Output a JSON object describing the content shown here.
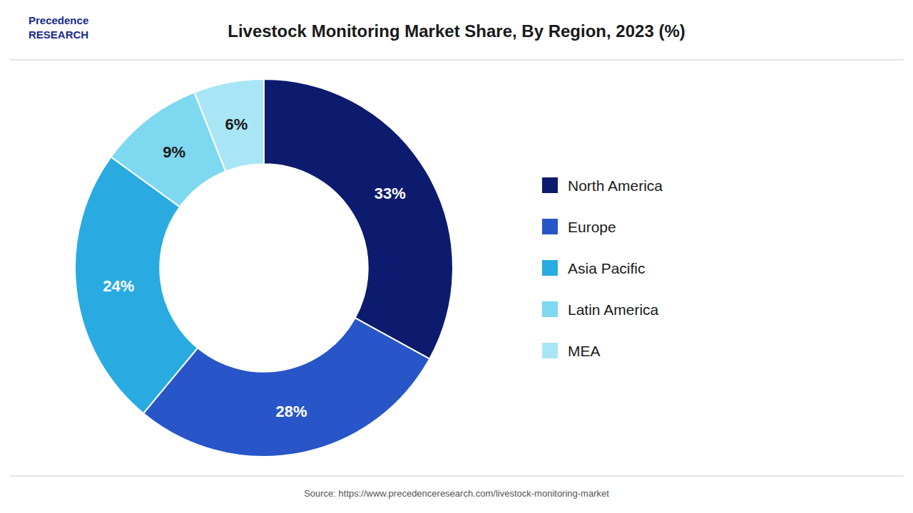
{
  "chart_data": {
    "type": "donut",
    "title": "Livestock Monitoring Market Share, By Region, 2023 (%)",
    "categories": [
      "North America",
      "Europe",
      "Asia Pacific",
      "Latin America",
      "MEA"
    ],
    "values": [
      33,
      28,
      24,
      9,
      6
    ],
    "value_labels": [
      "33%",
      "28%",
      "24%",
      "9%",
      "6%"
    ],
    "colors": [
      "#0d1b6e",
      "#2855c8",
      "#29abe2",
      "#7dd8f0",
      "#a8e6f5"
    ],
    "data_labels": true,
    "legend": "right",
    "annotations": [
      "Precedence\nRESEARCH",
      "Source: https://www.precedenceresearch.com/livestock-monitoring-market"
    ]
  }
}
